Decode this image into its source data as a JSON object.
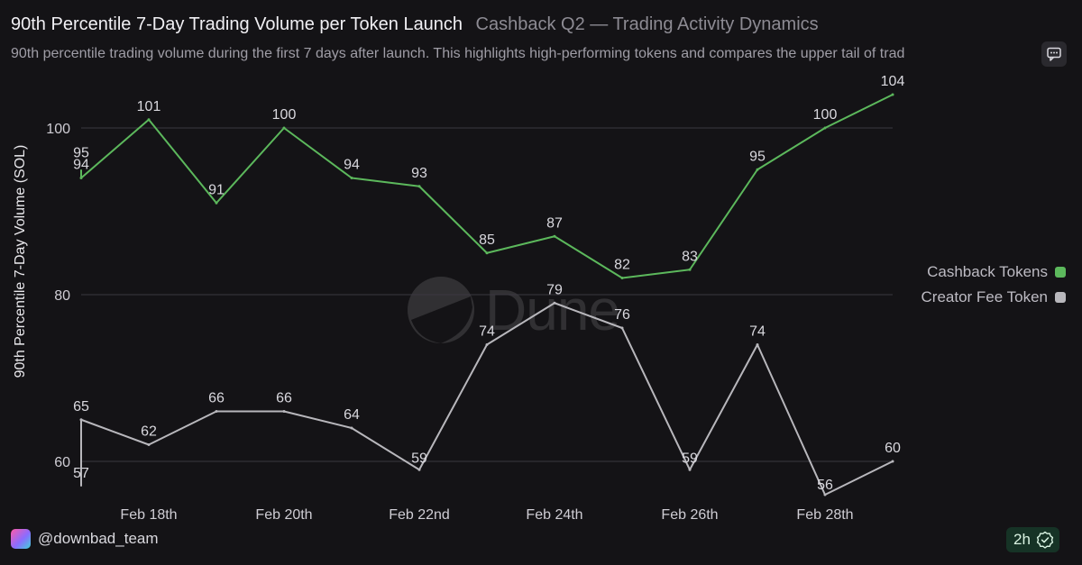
{
  "header": {
    "title": "90th Percentile 7-Day Trading Volume per Token Launch",
    "dashboard": "Cashback Q2 — Trading Activity Dynamics",
    "description": "90th percentile trading volume during the first 7 days after launch. This highlights high-performing tokens and compares the upper tail of trad"
  },
  "watermark": "Dune",
  "footer": {
    "username": "@downbad_team",
    "age": "2h"
  },
  "icons": {
    "comment": "comment-icon",
    "verified": "check-badge-icon",
    "avatar": "avatar-icon"
  },
  "colors": {
    "cashback": "#5cb85c",
    "creator": "#b8b7bc",
    "background": "#141316",
    "grid": "#3a3940"
  },
  "chart_data": {
    "type": "line",
    "title": "90th Percentile 7-Day Trading Volume per Token Launch",
    "ylabel": "90th Percentile 7-Day Volume (SOL)",
    "xlabel": "",
    "x": [
      "2025-02-17",
      "2025-02-18",
      "2025-02-19",
      "2025-02-20",
      "2025-02-21",
      "2025-02-22",
      "2025-02-23",
      "2025-02-24",
      "2025-02-25",
      "2025-02-26",
      "2025-02-27",
      "2025-02-28",
      "2025-03-01"
    ],
    "xticks": [
      "Feb 18th",
      "Feb 20th",
      "Feb 22nd",
      "Feb 24th",
      "Feb 26th",
      "Feb 28th"
    ],
    "yticks": [
      60,
      80,
      100
    ],
    "ylim": [
      57,
      107
    ],
    "grid": true,
    "legend_position": "right",
    "series": [
      {
        "name": "Cashback Tokens",
        "color": "#5cb85c",
        "values": [
          94,
          101,
          91,
          100,
          94,
          93,
          85,
          87,
          82,
          83,
          95,
          100,
          104
        ],
        "extra_start_value": 95,
        "labels": [
          "94",
          "101",
          "91",
          "100",
          "94",
          "93",
          "85",
          "87",
          "82",
          "83",
          "95",
          "100",
          "104"
        ],
        "start_label": "95"
      },
      {
        "name": "Creator Fee Token",
        "color": "#b8b7bc",
        "values": [
          65,
          62,
          66,
          66,
          64,
          59,
          74,
          79,
          76,
          59,
          74,
          56,
          60
        ],
        "extra_start_value": 57,
        "labels": [
          "65",
          "62",
          "66",
          "66",
          "64",
          "59",
          "74",
          "79",
          "76",
          "59",
          "74",
          "56",
          "60"
        ],
        "start_label": "57"
      }
    ]
  }
}
